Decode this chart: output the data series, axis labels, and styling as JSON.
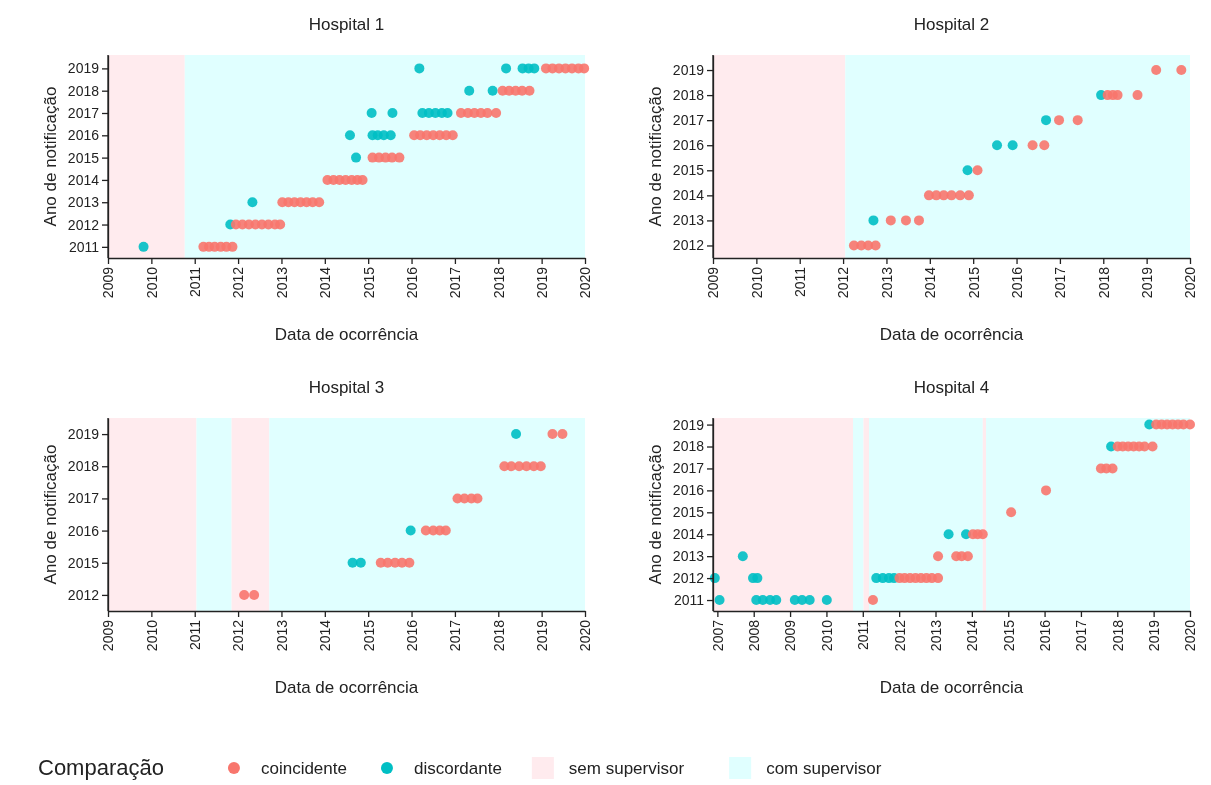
{
  "chart_data": [
    {
      "type": "scatter",
      "title": "Hospital 1",
      "xlabel": "Data de ocorrência",
      "ylabel": "Ano de notificação",
      "legend_title": "Comparação",
      "legend": "bottom",
      "marker": "circle",
      "xlim": [
        2009,
        2020
      ],
      "xticks": [
        2009,
        2010,
        2011,
        2012,
        2013,
        2014,
        2015,
        2016,
        2017,
        2018,
        2019,
        2020
      ],
      "ylim": [
        2010.5,
        2019.6
      ],
      "yticks": [
        2011,
        2012,
        2013,
        2014,
        2015,
        2016,
        2017,
        2018,
        2019
      ],
      "bands": [
        {
          "axis": "x",
          "from": 2009,
          "to": 2010.77,
          "label": "sem supervisor",
          "color": "#ffebee"
        },
        {
          "axis": "x",
          "from": 2010.77,
          "to": 2020,
          "label": "com supervisor",
          "color": "#e0ffff"
        }
      ],
      "series": [
        {
          "name": "coincidente",
          "color": "#f8766d",
          "x": [
            2011.2,
            2011.33,
            2011.46,
            2011.6,
            2011.73,
            2011.87,
            2011.95,
            2012.1,
            2012.25,
            2012.4,
            2012.55,
            2012.7,
            2012.85,
            2012.97,
            2013.02,
            2013.16,
            2013.3,
            2013.44,
            2013.58,
            2013.72,
            2013.87,
            2014.06,
            2014.2,
            2014.34,
            2014.48,
            2014.62,
            2014.75,
            2014.87,
            2015.1,
            2015.25,
            2015.4,
            2015.55,
            2015.72,
            2016.06,
            2016.2,
            2016.35,
            2016.5,
            2016.65,
            2016.8,
            2016.95,
            2017.14,
            2017.3,
            2017.45,
            2017.6,
            2017.75,
            2017.95,
            2018.1,
            2018.25,
            2018.4,
            2018.55,
            2018.72,
            2019.1,
            2019.25,
            2019.4,
            2019.55,
            2019.7,
            2019.85,
            2019.98
          ],
          "values": [
            2011,
            2011,
            2011,
            2011,
            2011,
            2011,
            2012,
            2012,
            2012,
            2012,
            2012,
            2012,
            2012,
            2012,
            2013,
            2013,
            2013,
            2013,
            2013,
            2013,
            2013,
            2014,
            2014,
            2014,
            2014,
            2014,
            2014,
            2014,
            2015,
            2015,
            2015,
            2015,
            2015,
            2016,
            2016,
            2016,
            2016,
            2016,
            2016,
            2016,
            2017,
            2017,
            2017,
            2017,
            2017,
            2017,
            2018,
            2018,
            2018,
            2018,
            2018,
            2019,
            2019,
            2019,
            2019,
            2019,
            2019,
            2019
          ]
        },
        {
          "name": "discordante",
          "color": "#00bfc4",
          "x": [
            2009.82,
            2011.82,
            2012.33,
            2014.72,
            2014.58,
            2015.1,
            2015.22,
            2015.36,
            2015.52,
            2015.08,
            2015.56,
            2016.25,
            2016.4,
            2016.55,
            2016.7,
            2016.83,
            2017.33,
            2017.87,
            2016.18,
            2018.18,
            2018.56,
            2018.7,
            2018.83
          ],
          "values": [
            2011,
            2012,
            2013,
            2015,
            2016,
            2016,
            2016,
            2016,
            2016,
            2017,
            2017,
            2017,
            2017,
            2017,
            2017,
            2017,
            2018,
            2018,
            2019,
            2019,
            2019,
            2019,
            2019
          ]
        }
      ]
    },
    {
      "type": "scatter",
      "title": "Hospital 2",
      "xlabel": "Data de ocorrência",
      "ylabel": "Ano de notificação",
      "marker": "circle",
      "xlim": [
        2009,
        2020
      ],
      "xticks": [
        2009,
        2010,
        2011,
        2012,
        2013,
        2014,
        2015,
        2016,
        2017,
        2018,
        2019,
        2020
      ],
      "ylim": [
        2011.5,
        2019.6
      ],
      "yticks": [
        2012,
        2013,
        2014,
        2015,
        2016,
        2017,
        2018,
        2019
      ],
      "bands": [
        {
          "axis": "x",
          "from": 2009,
          "to": 2012.05,
          "color": "#ffebee"
        },
        {
          "axis": "x",
          "from": 2012.05,
          "to": 2020,
          "color": "#e0ffff"
        }
      ],
      "series": [
        {
          "color": "#f8766d",
          "x": [
            2012.25,
            2012.42,
            2012.58,
            2012.75,
            2013.1,
            2013.45,
            2013.75,
            2013.98,
            2014.15,
            2014.32,
            2014.5,
            2014.7,
            2014.9,
            2015.1,
            2016.37,
            2016.64,
            2016.98,
            2017.41,
            2018.1,
            2018.22,
            2018.33,
            2018.79,
            2019.22,
            2019.8
          ],
          "values": [
            2012,
            2012,
            2012,
            2012,
            2013,
            2013,
            2013,
            2014,
            2014,
            2014,
            2014,
            2014,
            2014,
            2015,
            2016,
            2016,
            2017,
            2017,
            2018,
            2018,
            2018,
            2018,
            2019,
            2019
          ]
        },
        {
          "color": "#00bfc4",
          "x": [
            2012.7,
            2014.87,
            2015.55,
            2015.91,
            2016.68,
            2017.95
          ],
          "values": [
            2013,
            2015,
            2016,
            2016,
            2017,
            2018
          ]
        }
      ]
    },
    {
      "type": "scatter",
      "title": "Hospital 3",
      "xlabel": "Data de ocorrência",
      "ylabel": "Ano de notificação",
      "marker": "circle",
      "xlim": [
        2009,
        2020
      ],
      "xticks": [
        2009,
        2010,
        2011,
        2012,
        2013,
        2014,
        2015,
        2016,
        2017,
        2018,
        2019,
        2020
      ],
      "orientation": "horizontal",
      "categories": [
        "2019",
        "2018",
        "2017",
        "2016",
        "2015",
        "2012"
      ],
      "bands": [
        {
          "axis": "x",
          "from": 2009,
          "to": 2011.04,
          "color": "#ffebee"
        },
        {
          "axis": "x",
          "from": 2011.04,
          "to": 2011.85,
          "color": "#e0ffff"
        },
        {
          "axis": "x",
          "from": 2011.85,
          "to": 2012.72,
          "color": "#ffebee"
        },
        {
          "axis": "x",
          "from": 2012.72,
          "to": 2020,
          "color": "#e0ffff"
        }
      ],
      "series": [
        {
          "color": "#f8766d",
          "values": [
            2019.25,
            2018.14,
            2017.06,
            2016.33,
            2015.29,
            2012.14
          ]
        },
        {
          "color": "#f8766d",
          "values": [
            2019.48,
            2018.3,
            2017.22,
            2016.5,
            2015.45,
            2012.37
          ]
        },
        {
          "color": "#f8766d",
          "values": [
            null,
            2018.48,
            2017.38,
            2016.65,
            2015.62,
            null
          ]
        },
        {
          "color": "#f8766d",
          "values": [
            null,
            2018.65,
            2017.52,
            2016.79,
            2015.78,
            null
          ]
        },
        {
          "color": "#f8766d",
          "values": [
            null,
            2018.82,
            null,
            null,
            2015.95,
            null
          ]
        },
        {
          "color": "#f8766d",
          "values": [
            null,
            2018.98,
            null,
            null,
            null,
            null
          ]
        },
        {
          "color": "#00bfc4",
          "values": [
            2018.41,
            null,
            null,
            2015.98,
            2014.64,
            null
          ]
        },
        {
          "color": "#00bfc4",
          "values": [
            null,
            null,
            null,
            null,
            2014.83,
            null
          ]
        }
      ]
    },
    {
      "type": "scatter",
      "title": "Hospital 4",
      "xlabel": "Data de ocorrência",
      "ylabel": "Ano de notificação",
      "marker": "circle",
      "xlim": [
        2006.88,
        2020
      ],
      "xticks": [
        2007,
        2008,
        2009,
        2010,
        2011,
        2012,
        2013,
        2014,
        2015,
        2016,
        2017,
        2018,
        2019,
        2020
      ],
      "ylim": [
        2010.5,
        2019.3
      ],
      "yticks": [
        2011,
        2012,
        2013,
        2014,
        2015,
        2016,
        2017,
        2018,
        2019
      ],
      "bands": [
        {
          "axis": "x",
          "from": 2006.88,
          "to": 2010.73,
          "color": "#ffebee"
        },
        {
          "axis": "x",
          "from": 2010.73,
          "to": 2011.02,
          "color": "#e0ffff"
        },
        {
          "axis": "x",
          "from": 2011.02,
          "to": 2011.17,
          "color": "#ffebee"
        },
        {
          "axis": "x",
          "from": 2011.17,
          "to": 2014.3,
          "color": "#e0ffff"
        },
        {
          "axis": "x",
          "from": 2014.3,
          "to": 2014.39,
          "color": "#ffebee"
        },
        {
          "axis": "x",
          "from": 2014.39,
          "to": 2020,
          "color": "#e0ffff"
        }
      ],
      "series": [
        {
          "color": "#f8766d",
          "x": [
            2011.28,
            2012.01,
            2012.15,
            2012.3,
            2012.45,
            2012.6,
            2012.75,
            2012.9,
            2013.07,
            2013.07,
            2013.57,
            2013.72,
            2013.89,
            2014.03,
            2014.16,
            2014.3,
            2015.08,
            2016.04,
            2017.55,
            2017.7,
            2017.87,
            2018.01,
            2018.15,
            2018.3,
            2018.45,
            2018.6,
            2018.75,
            2018.97,
            2019.07,
            2019.22,
            2019.37,
            2019.52,
            2019.67,
            2019.82,
            2020
          ],
          "values": [
            2011,
            2012,
            2012,
            2012,
            2012,
            2012,
            2012,
            2012,
            2012,
            2013,
            2013,
            2013,
            2013,
            2014,
            2014,
            2014,
            2015,
            2016,
            2017,
            2017,
            2017,
            2018,
            2018,
            2018,
            2018,
            2018,
            2018,
            2018,
            2019,
            2019,
            2019,
            2019,
            2019,
            2019,
            2019
          ]
        },
        {
          "color": "#00bfc4",
          "x": [
            2007.06,
            2008.07,
            2008.25,
            2008.45,
            2008.62,
            2009.13,
            2009.33,
            2009.54,
            2010.01,
            2006.93,
            2007.98,
            2008.1,
            2007.7,
            2011.37,
            2011.55,
            2011.72,
            2011.86,
            2013.36,
            2013.84,
            2017.83,
            2018.88
          ],
          "values": [
            2011,
            2011,
            2011,
            2011,
            2011,
            2011,
            2011,
            2011,
            2011,
            2012,
            2012,
            2012,
            2013,
            2012,
            2012,
            2012,
            2012,
            2014,
            2014,
            2018,
            2019
          ]
        }
      ]
    }
  ]
}
